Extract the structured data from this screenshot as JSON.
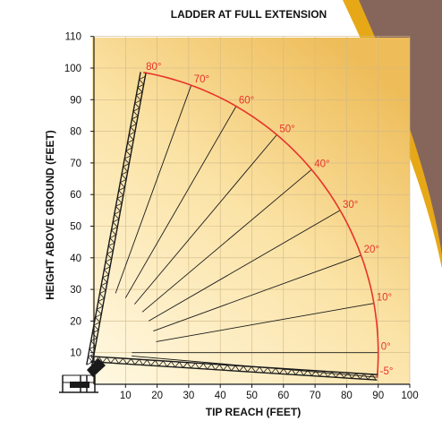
{
  "colors": {
    "arc": "#e8332a",
    "angle_label": "#e8332a",
    "ray": "#1a1a1a",
    "grid": "#cfb888",
    "bg_light": "#fff8e2",
    "bg_dark": "#eebd5a",
    "swoosh_gold": "#e7a818",
    "swoosh_brown": "#86665a"
  },
  "chart_data": {
    "type": "line",
    "title": "LADDER AT FULL EXTENSION",
    "xlabel": "TIP REACH (FEET)",
    "ylabel": "HEIGHT ABOVE GROUND (FEET)",
    "xlim": [
      0,
      100
    ],
    "ylim": [
      0,
      110
    ],
    "x_ticks": [
      "10",
      "20",
      "30",
      "40",
      "50",
      "60",
      "70",
      "80",
      "90",
      "100"
    ],
    "y_ticks": [
      "10",
      "20",
      "30",
      "40",
      "50",
      "60",
      "70",
      "80",
      "90",
      "100",
      "110"
    ],
    "grid": true,
    "pivot": {
      "x": 0,
      "y": 10
    },
    "full_extension": 90,
    "angles": [
      {
        "label": "80°",
        "deg": 80,
        "tip_x": 15.6,
        "tip_y": 98.6
      },
      {
        "label": "70°",
        "deg": 70,
        "tip_x": 30.8,
        "tip_y": 94.6
      },
      {
        "label": "60°",
        "deg": 60,
        "tip_x": 45.0,
        "tip_y": 87.9
      },
      {
        "label": "50°",
        "deg": 50,
        "tip_x": 57.9,
        "tip_y": 78.9
      },
      {
        "label": "40°",
        "deg": 40,
        "tip_x": 68.9,
        "tip_y": 67.9
      },
      {
        "label": "30°",
        "deg": 30,
        "tip_x": 77.9,
        "tip_y": 55.0
      },
      {
        "label": "20°",
        "deg": 20,
        "tip_x": 84.6,
        "tip_y": 40.8
      },
      {
        "label": "10°",
        "deg": 10,
        "tip_x": 88.6,
        "tip_y": 25.6
      },
      {
        "label": "0°",
        "deg": 0,
        "tip_x": 90.0,
        "tip_y": 10.0
      },
      {
        "label": "-5°",
        "deg": -5,
        "tip_x": 89.7,
        "tip_y": 2.2
      }
    ]
  }
}
